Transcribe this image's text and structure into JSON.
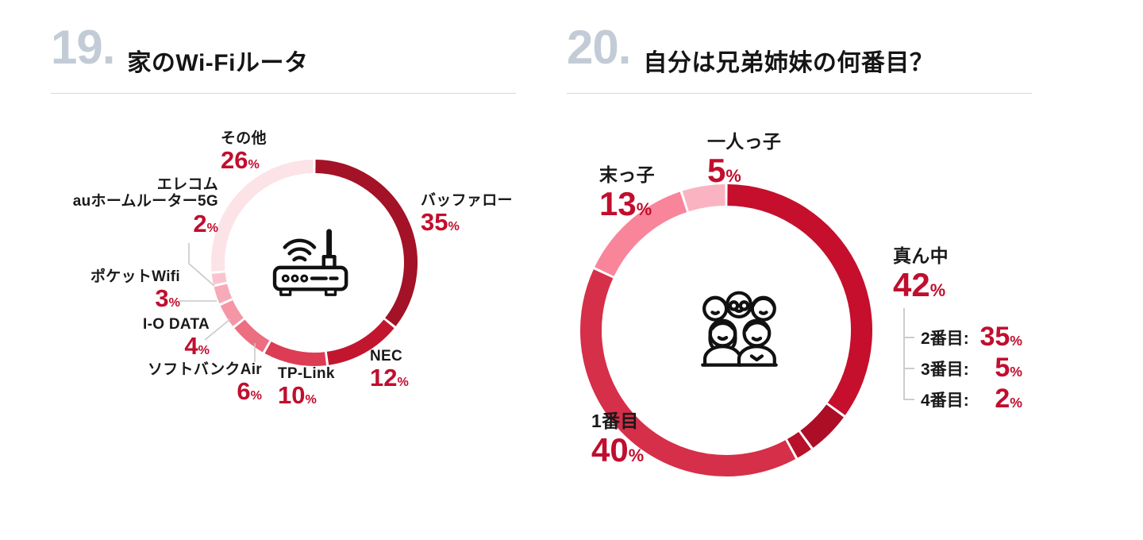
{
  "ui": {
    "percent_sign": "%",
    "colon": ":"
  },
  "header": [
    {
      "number": "19.",
      "title": "家のWi-Fiルータ"
    },
    {
      "number": "20.",
      "title": "自分は兄弟姉妹の何番目？"
    }
  ],
  "chart_data": [
    {
      "type": "donut",
      "question_number": "19",
      "title": "家のWi-Fiルータ",
      "unit": "%",
      "direction": "clockwise",
      "start_angle": "top",
      "donut": {
        "outer_radius": 130,
        "ring_width": 17,
        "gap_deg": 1.4
      },
      "center_icon": "wifi-router-icon",
      "segments": [
        {
          "label": "バッファロー",
          "value": 35,
          "color": "#a31226"
        },
        {
          "label": "NEC",
          "value": 12,
          "color": "#c2162f"
        },
        {
          "label": "TP-Link",
          "value": 10,
          "color": "#dc3d54"
        },
        {
          "label": "ソフトバンクAir",
          "value": 6,
          "color": "#ec6e81"
        },
        {
          "label": "I-O DATA",
          "value": 4,
          "color": "#f596a6"
        },
        {
          "label": "ポケットWifi",
          "value": 3,
          "color": "#f7aab8"
        },
        {
          "label": "エレコム\nauホームルーター5G",
          "value": 2,
          "color": "#fac4ce"
        },
        {
          "label": "その他",
          "value": 26,
          "color": "#fce3e8"
        }
      ]
    },
    {
      "type": "donut",
      "question_number": "20",
      "title": "自分は兄弟姉妹の何番目？",
      "unit": "%",
      "direction": "clockwise",
      "start_angle": "top",
      "donut": {
        "outer_radius": 184,
        "ring_width": 27,
        "gap_deg": 1.0
      },
      "center_icon": "family-icon",
      "segments": [
        {
          "label": "2番目",
          "value": 35,
          "color": "#c50f2d",
          "group": "真ん中"
        },
        {
          "label": "3番目",
          "value": 5,
          "color": "#ac0e26",
          "group": "真ん中"
        },
        {
          "label": "4番目",
          "value": 2,
          "color": "#b81029",
          "group": "真ん中"
        },
        {
          "label": "1番目",
          "value": 40,
          "color": "#d62f49"
        },
        {
          "label": "末っ子",
          "value": 13,
          "color": "#f8859a"
        },
        {
          "label": "一人っ子",
          "value": 5,
          "color": "#fab4c1"
        }
      ],
      "groups": [
        {
          "label": "真ん中",
          "value": 42,
          "children": [
            "2番目",
            "3番目",
            "4番目"
          ]
        }
      ]
    }
  ]
}
